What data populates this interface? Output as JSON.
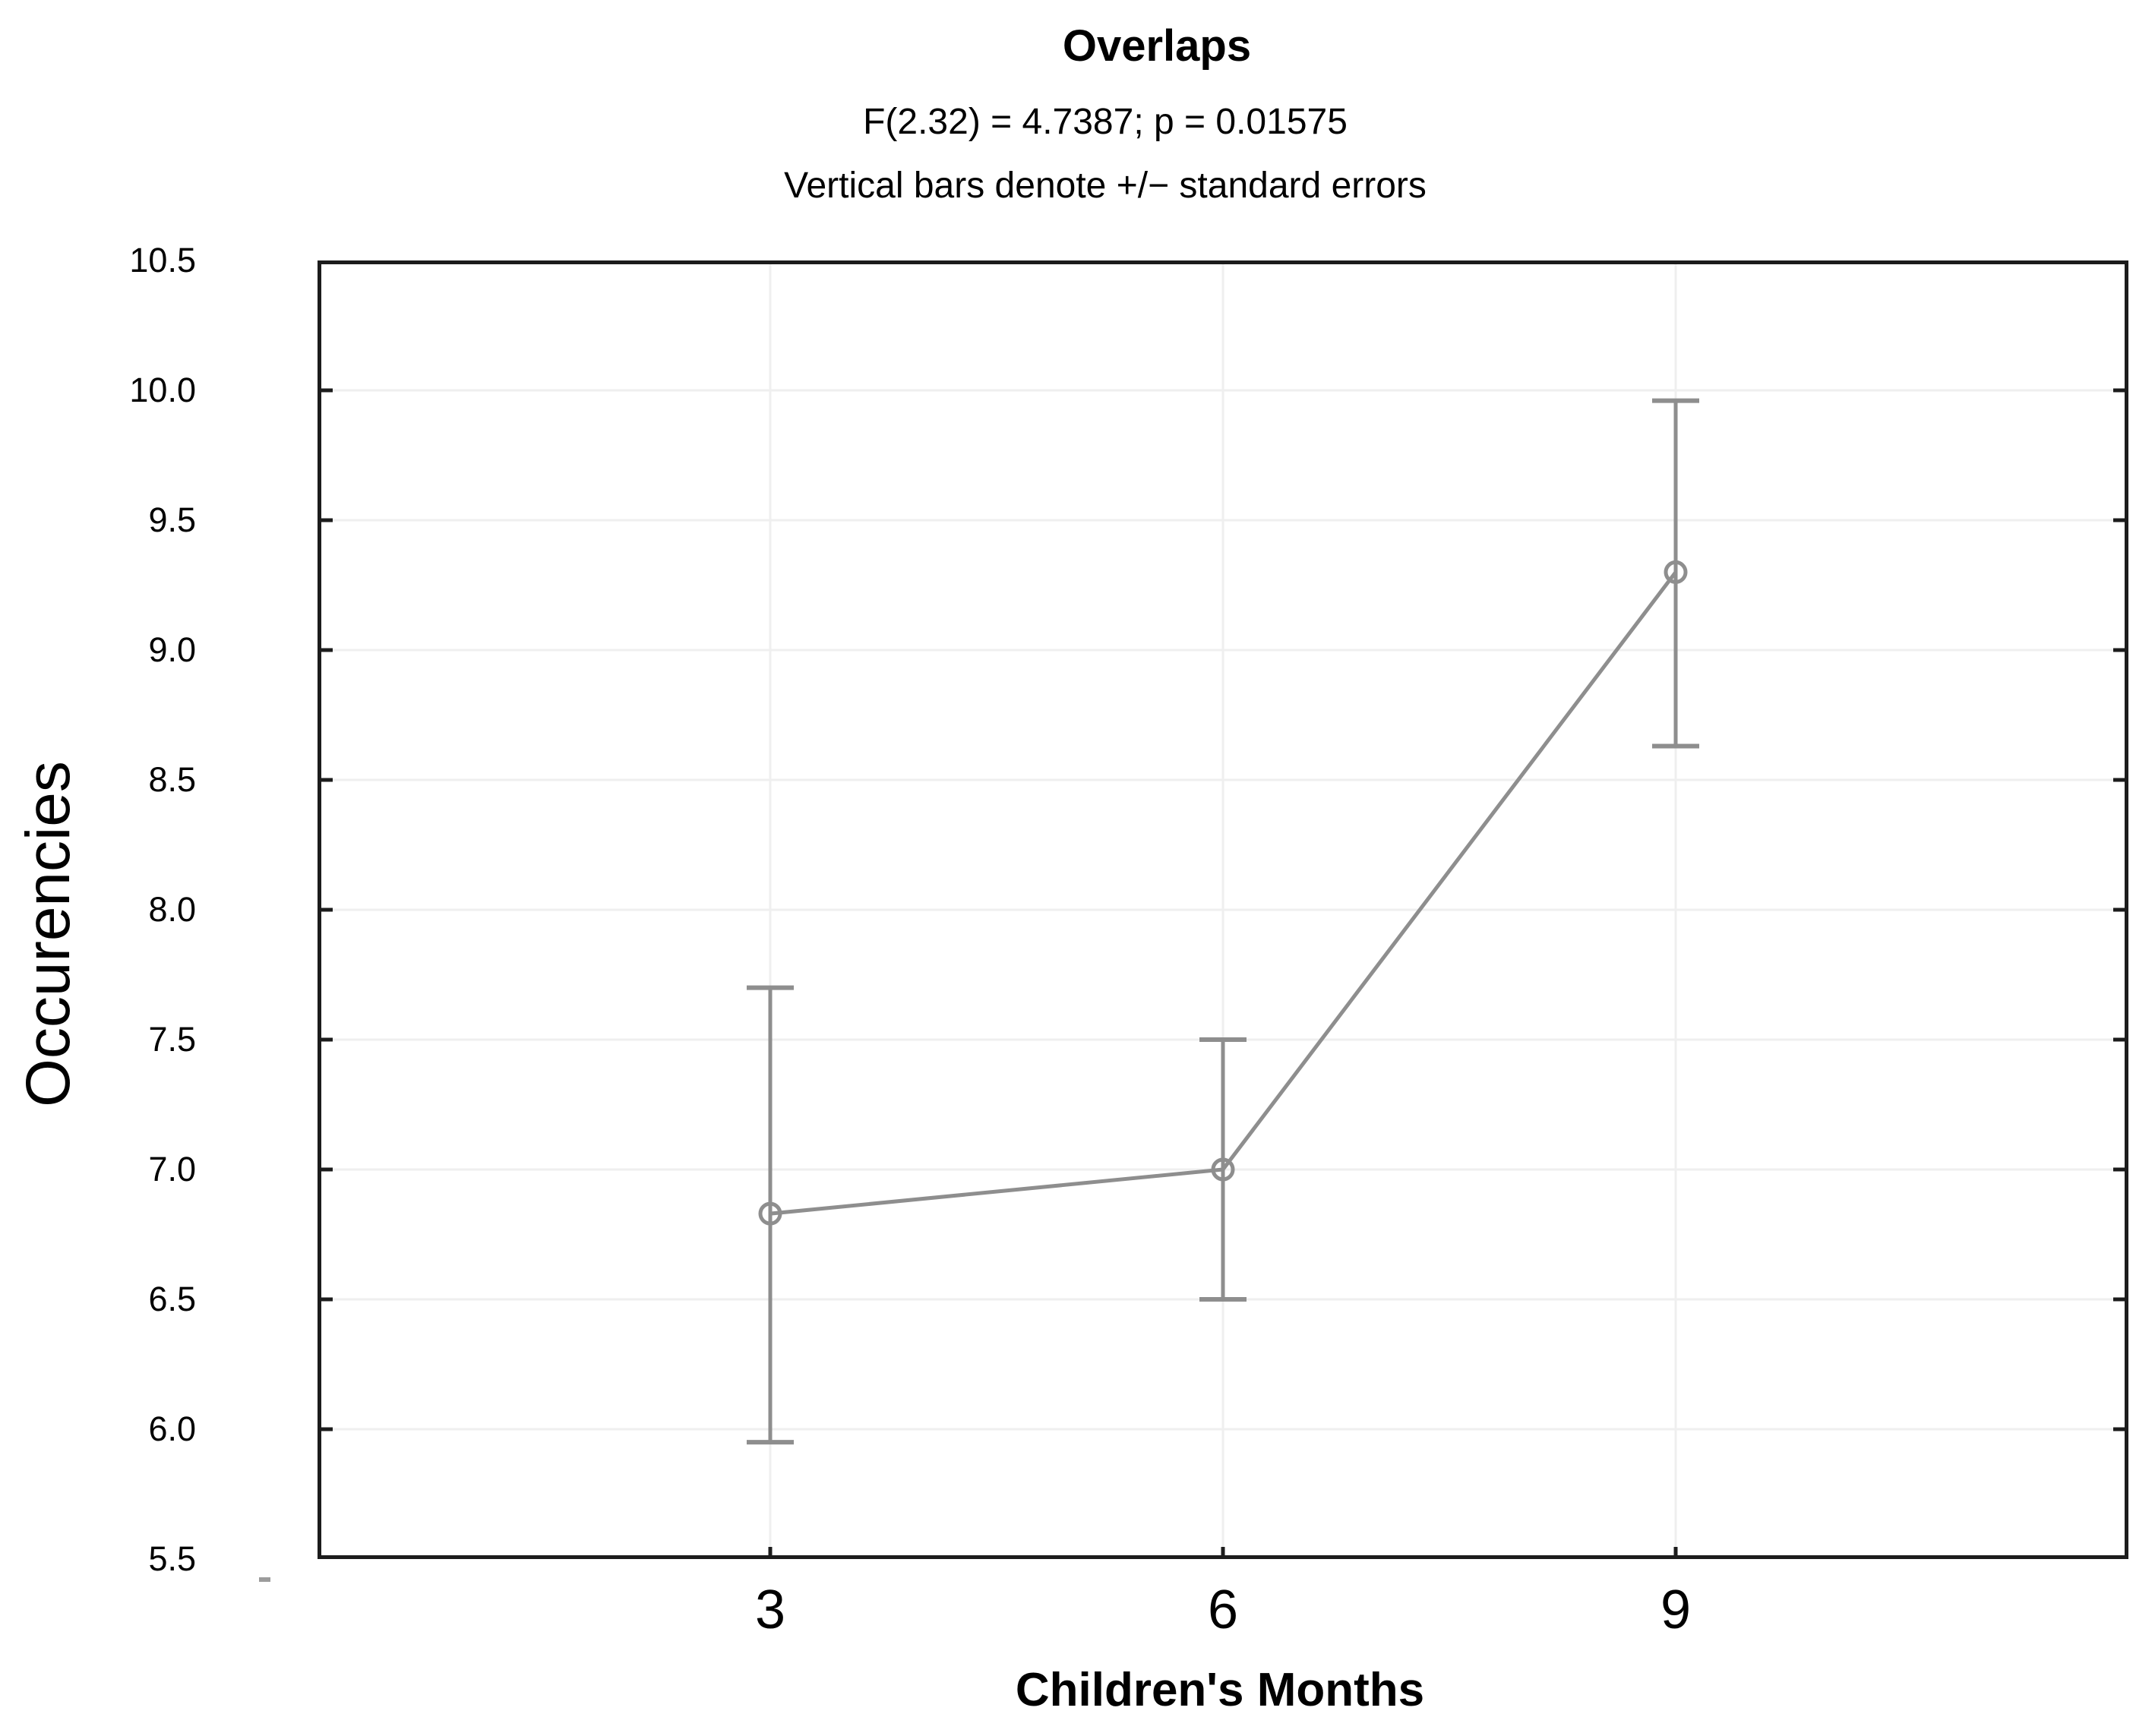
{
  "figure": {
    "title": "Overlaps",
    "stats_line": "F(2.32) = 4.7387; p = 0.01575",
    "note_line": "Vertical bars denote +/− standard errors"
  },
  "chart_data": {
    "type": "line",
    "title": "Overlaps",
    "subtitle": "F(2.32) = 4.7387; p = 0.01575",
    "annotation": "Vertical bars denote +/− standard errors",
    "xlabel": "Children's Months",
    "ylabel": "Occurencies",
    "categories": [
      "3",
      "6",
      "9"
    ],
    "series": [
      {
        "name": "Overlaps",
        "means": [
          6.83,
          7.0,
          9.3
        ],
        "se_upper": [
          7.7,
          7.5,
          9.96
        ],
        "se_lower": [
          5.95,
          6.5,
          8.63
        ]
      }
    ],
    "ylim": [
      5.5,
      10.5
    ],
    "ytick_step": 0.5,
    "ytick_labels": [
      "10.5",
      "10.0",
      "9.5",
      "9.0",
      "8.5",
      "8.0",
      "7.5",
      "7.0",
      "6.5",
      "6.0",
      "5.5"
    ],
    "grid": "on",
    "legend_position": "none",
    "marker": "open-circle",
    "colors": {
      "series": "#8e8e8e",
      "axis": "#1c1c1c",
      "grid": "#efefef",
      "text": "#000000"
    }
  }
}
